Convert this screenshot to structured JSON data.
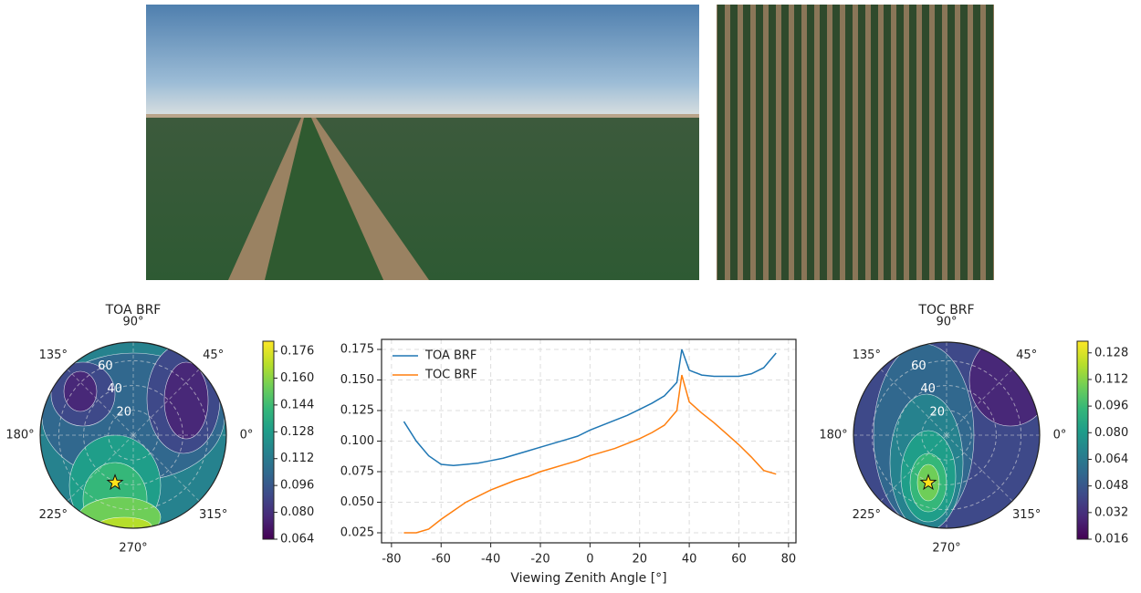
{
  "chart_data": [
    {
      "type": "polar",
      "title": "TOA BRF",
      "thetaticks": [
        {
          "value": 0,
          "label": "0°"
        },
        {
          "value": 45,
          "label": "45°"
        },
        {
          "value": 90,
          "label": "90°"
        },
        {
          "value": 135,
          "label": "135°"
        },
        {
          "value": 180,
          "label": "180°"
        },
        {
          "value": 225,
          "label": "225°"
        },
        {
          "value": 270,
          "label": "270°"
        },
        {
          "value": 315,
          "label": "315°"
        }
      ],
      "rlim": [
        0,
        75
      ],
      "rticks": [
        20,
        40,
        60
      ],
      "marker": {
        "theta": 249,
        "r": 41
      },
      "clim": [
        0.064,
        0.182
      ],
      "cticks": [
        0.064,
        {
          "value": 0.08,
          "label": "0.080"
        },
        0.096,
        0.112,
        0.128,
        0.144,
        {
          "value": 0.16,
          "label": "0.160"
        },
        0.176
      ]
    },
    {
      "type": "line",
      "xlabel": "Viewing Zenith Angle [°]",
      "x": [
        -75,
        -70,
        -65,
        -60,
        -55,
        -50,
        -45,
        -40,
        -35,
        -30,
        -25,
        -20,
        -15,
        -10,
        -5,
        0,
        5,
        10,
        15,
        20,
        25,
        30,
        35,
        37,
        40,
        45,
        50,
        55,
        60,
        65,
        70,
        75
      ],
      "series": [
        {
          "name": "TOA BRF",
          "color": "#1f77b4",
          "values": [
            0.116,
            0.1,
            0.088,
            0.081,
            0.08,
            0.081,
            0.082,
            0.084,
            0.086,
            0.089,
            0.092,
            0.095,
            0.098,
            0.101,
            0.104,
            0.109,
            0.113,
            0.117,
            0.121,
            0.126,
            0.131,
            0.137,
            0.148,
            0.175,
            0.158,
            0.154,
            0.153,
            0.153,
            0.153,
            0.155,
            0.16,
            0.172
          ]
        },
        {
          "name": "TOC BRF",
          "color": "#ff7f0e",
          "values": [
            0.025,
            0.025,
            0.028,
            0.036,
            0.043,
            0.05,
            0.055,
            0.06,
            0.064,
            0.068,
            0.071,
            0.075,
            0.078,
            0.081,
            0.084,
            0.088,
            0.091,
            0.094,
            0.098,
            0.102,
            0.107,
            0.113,
            0.125,
            0.154,
            0.132,
            0.123,
            0.115,
            0.106,
            0.097,
            0.087,
            0.076,
            0.073
          ]
        }
      ],
      "xlim": [
        -84,
        83
      ],
      "xticks": [
        -80,
        -60,
        -40,
        -20,
        0,
        20,
        40,
        60,
        80
      ],
      "ylim": [
        0.0168,
        0.1832
      ],
      "yticks": [
        0.025,
        {
          "value": 0.05,
          "label": "0.050"
        },
        0.075,
        {
          "value": 0.1,
          "label": "0.100"
        },
        0.125,
        {
          "value": 0.15,
          "label": "0.150"
        },
        0.175
      ],
      "grid": true,
      "legend": "upper left"
    },
    {
      "type": "polar",
      "title": "TOC BRF",
      "thetaticks": [
        {
          "value": 0,
          "label": "0°"
        },
        {
          "value": 45,
          "label": "45°"
        },
        {
          "value": 90,
          "label": "90°"
        },
        {
          "value": 135,
          "label": "135°"
        },
        {
          "value": 180,
          "label": "180°"
        },
        {
          "value": 225,
          "label": "225°"
        },
        {
          "value": 270,
          "label": "270°"
        },
        {
          "value": 315,
          "label": "315°"
        }
      ],
      "rlim": [
        0,
        75
      ],
      "rticks": [
        20,
        40,
        60
      ],
      "marker": {
        "theta": 249,
        "r": 41
      },
      "clim": [
        0.016,
        0.135
      ],
      "cticks": [
        0.016,
        0.032,
        0.048,
        0.064,
        {
          "value": 0.08,
          "label": "0.080"
        },
        0.096,
        0.112,
        0.128
      ]
    }
  ]
}
